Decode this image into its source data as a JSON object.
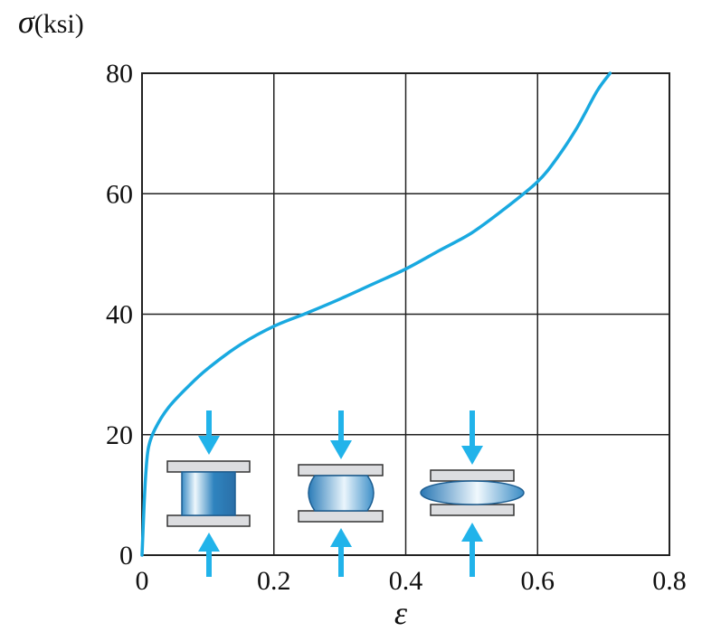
{
  "chart_data": {
    "type": "line",
    "title": "",
    "xlabel": "ε",
    "ylabel_symbol": "σ",
    "ylabel_unit": "(ksi)",
    "xlim": [
      0,
      0.8
    ],
    "ylim": [
      0,
      80
    ],
    "x_ticks": [
      "0",
      "0.2",
      "0.4",
      "0.6",
      "0.8"
    ],
    "y_ticks": [
      "0",
      "20",
      "40",
      "60",
      "80"
    ],
    "grid": true,
    "series": [
      {
        "x": [
          0.0,
          0.003,
          0.006,
          0.01,
          0.02,
          0.04,
          0.07,
          0.1,
          0.15,
          0.2,
          0.25,
          0.3,
          0.35,
          0.4,
          0.45,
          0.5,
          0.55,
          0.6,
          0.63,
          0.66,
          0.69,
          0.71
        ],
        "y": [
          0,
          8,
          14,
          18,
          21,
          24.5,
          28,
          31,
          35,
          38,
          40.2,
          42.5,
          45,
          47.5,
          50.5,
          53.5,
          57.5,
          62,
          66,
          71,
          77,
          80
        ]
      }
    ],
    "colors": {
      "curve": "#19a9e0",
      "arrow": "#21b3ea",
      "grid": "#222222"
    },
    "specimen_icons": [
      "cylinder-specimen-icon",
      "barrel-specimen-icon",
      "flattened-specimen-icon"
    ]
  }
}
